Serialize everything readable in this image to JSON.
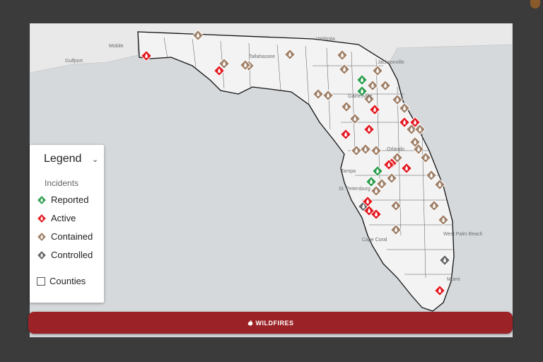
{
  "legend": {
    "title": "Legend",
    "section": "Incidents",
    "items": [
      "Reported",
      "Active",
      "Contained",
      "Controlled"
    ],
    "toggle": "Counties"
  },
  "map_labels": [
    "Mobile",
    "Gulfport",
    "Valdosta",
    "Tallahassee",
    "Jacksonville",
    "Gainesville",
    "Orlando",
    "Tampa",
    "St. Petersburg",
    "Cape Coral",
    "West Palm Beach",
    "Miami"
  ],
  "button": {
    "label": "WILDFIRES"
  }
}
